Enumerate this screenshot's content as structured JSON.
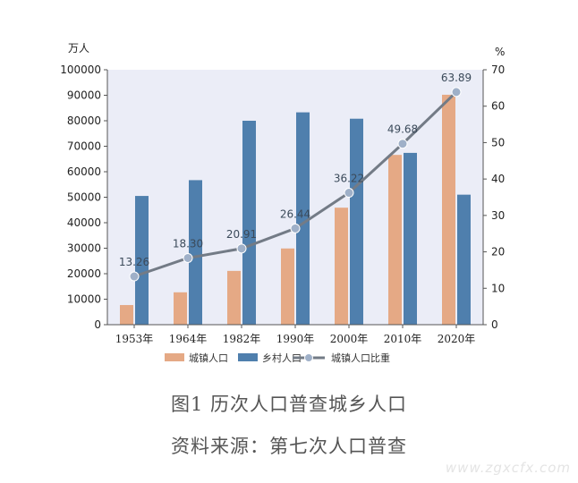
{
  "chart_data": {
    "type": "bar",
    "left_unit": "万人",
    "right_unit": "%",
    "categories": [
      "1953年",
      "1964年",
      "1982年",
      "1990年",
      "2000年",
      "2010年",
      "2020年"
    ],
    "series": [
      {
        "name": "城镇人口",
        "kind": "bar",
        "axis": "left",
        "color": "#e5a985",
        "values": [
          7700,
          12700,
          21100,
          29900,
          45900,
          66600,
          90200
        ]
      },
      {
        "name": "乡村人口",
        "kind": "bar",
        "axis": "left",
        "color": "#4f7fad",
        "values": [
          50500,
          56700,
          80000,
          83300,
          80800,
          67400,
          51000
        ]
      },
      {
        "name": "城镇人口比重",
        "kind": "line",
        "axis": "right",
        "color": "#737b86",
        "marker_color": "#9fb0c8",
        "values": [
          13.26,
          18.3,
          20.91,
          26.44,
          36.22,
          49.68,
          63.89
        ],
        "labels": [
          "13.26",
          "18.30",
          "20.91",
          "26.44",
          "36.22",
          "49.68",
          "63.89"
        ]
      }
    ],
    "y_left": {
      "min": 0,
      "max": 100000,
      "ticks": [
        "0",
        "10000",
        "20000",
        "30000",
        "40000",
        "50000",
        "60000",
        "70000",
        "80000",
        "90000",
        "100000"
      ]
    },
    "y_right": {
      "min": 0,
      "max": 70,
      "ticks": [
        "0",
        "10",
        "20",
        "30",
        "40",
        "50",
        "60",
        "70"
      ]
    },
    "legend_position": "bottom",
    "grid": false,
    "plot_background": "#ebedf7"
  },
  "caption": {
    "title": "图1  历次人口普查城乡人口",
    "source": "资料来源：第七次人口普查"
  },
  "watermark": "www.zgxcfx.com"
}
